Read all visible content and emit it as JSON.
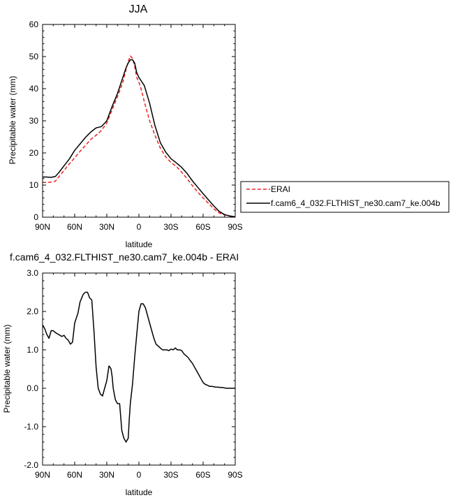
{
  "chart_data": [
    {
      "type": "line",
      "title": "JJA",
      "xlabel": "latitude",
      "ylabel": "Precipitable water (mm)",
      "xlim": [
        90,
        -90
      ],
      "ylim": [
        0,
        60
      ],
      "x_ticks": [
        90,
        60,
        30,
        0,
        -30,
        -60,
        -90
      ],
      "x_tick_labels": [
        "90N",
        "60N",
        "30N",
        "0",
        "30S",
        "60S",
        "90S"
      ],
      "y_ticks": [
        0,
        10,
        20,
        30,
        40,
        50,
        60
      ],
      "y_tick_labels": [
        "0",
        "10",
        "20",
        "30",
        "40",
        "50",
        "60"
      ],
      "grid": false,
      "legend": "right",
      "series": [
        {
          "name": "ERAI",
          "color": "#e8231c",
          "dash": "dashed",
          "x": [
            90,
            86,
            82,
            78,
            75,
            70,
            65,
            60,
            55,
            50,
            45,
            40,
            35,
            30,
            25,
            20,
            15,
            12,
            10,
            8,
            6,
            4,
            2,
            0,
            -2,
            -5,
            -10,
            -15,
            -20,
            -25,
            -30,
            -35,
            -40,
            -45,
            -50,
            -55,
            -60,
            -65,
            -70,
            -75,
            -80,
            -85,
            -90
          ],
          "y": [
            10.8,
            10.8,
            10.9,
            11.2,
            12.5,
            14.5,
            16.6,
            18.5,
            20.5,
            22.3,
            24.2,
            25.5,
            27.0,
            29.3,
            33.5,
            37.5,
            42.0,
            46.0,
            48.5,
            50.2,
            49.5,
            47.0,
            43.5,
            42.0,
            40.0,
            36.0,
            30.0,
            25.5,
            21.5,
            18.8,
            17.0,
            15.8,
            14.0,
            12.0,
            9.8,
            7.8,
            6.0,
            4.3,
            2.6,
            1.3,
            0.7,
            0.3,
            0.1
          ]
        },
        {
          "name": "f.cam6_4_032.FLTHIST_ne30.cam7_ke.004b",
          "color": "#000000",
          "dash": "solid",
          "x": [
            90,
            86,
            82,
            78,
            75,
            70,
            65,
            60,
            55,
            50,
            45,
            40,
            35,
            30,
            25,
            20,
            15,
            12,
            10,
            8,
            6,
            4,
            2,
            0,
            -2,
            -5,
            -10,
            -15,
            -20,
            -25,
            -30,
            -35,
            -40,
            -45,
            -50,
            -55,
            -60,
            -65,
            -70,
            -75,
            -80,
            -85,
            -90
          ],
          "y": [
            12.5,
            12.5,
            12.4,
            12.7,
            13.8,
            16.0,
            18.1,
            20.8,
            22.8,
            24.8,
            26.5,
            27.8,
            28.2,
            30.0,
            34.5,
            38.5,
            43.5,
            46.5,
            48.0,
            49.0,
            49.0,
            48.0,
            45.0,
            43.5,
            42.5,
            41.0,
            35.5,
            28.5,
            23.2,
            20.3,
            18.2,
            16.9,
            15.5,
            13.6,
            11.3,
            9.3,
            7.3,
            5.4,
            3.5,
            1.8,
            0.8,
            0.4,
            0.1
          ]
        }
      ]
    },
    {
      "type": "line",
      "title": "f.cam6_4_032.FLTHIST_ne30.cam7_ke.004b - ERAI",
      "xlabel": "latitude",
      "ylabel": "Precipitable water (mm)",
      "xlim": [
        90,
        -90
      ],
      "ylim": [
        -2,
        3
      ],
      "x_ticks": [
        90,
        60,
        30,
        0,
        -30,
        -60,
        -90
      ],
      "x_tick_labels": [
        "90N",
        "60N",
        "30N",
        "0",
        "30S",
        "60S",
        "90S"
      ],
      "y_ticks": [
        -2,
        -1,
        0,
        1,
        2,
        3
      ],
      "y_tick_labels": [
        "-2.0",
        "-1.0",
        "0.0",
        "1.0",
        "2.0",
        "3.0"
      ],
      "grid": false,
      "series": [
        {
          "color": "#000000",
          "dash": "solid",
          "x": [
            90,
            88,
            86,
            84,
            82,
            80,
            78,
            75,
            72,
            70,
            68,
            66,
            64,
            62,
            60,
            57,
            55,
            52,
            50,
            48,
            46,
            44,
            42,
            40,
            38,
            36,
            34,
            32,
            30,
            28,
            27,
            26,
            25,
            24,
            22,
            20,
            18,
            16,
            14,
            12,
            10,
            9,
            8,
            6,
            4,
            2,
            0,
            -2,
            -4,
            -6,
            -8,
            -10,
            -12,
            -14,
            -16,
            -18,
            -20,
            -22,
            -24,
            -26,
            -28,
            -30,
            -32,
            -34,
            -36,
            -38,
            -40,
            -42,
            -44,
            -46,
            -48,
            -50,
            -52,
            -54,
            -56,
            -58,
            -60,
            -62,
            -64,
            -66,
            -68,
            -70,
            -72,
            -74,
            -76,
            -78,
            -80,
            -82,
            -84,
            -86,
            -88,
            -90
          ],
          "y": [
            1.65,
            1.55,
            1.4,
            1.3,
            1.5,
            1.5,
            1.45,
            1.4,
            1.35,
            1.38,
            1.3,
            1.25,
            1.15,
            1.2,
            1.7,
            1.95,
            2.25,
            2.45,
            2.5,
            2.5,
            2.35,
            2.3,
            1.5,
            0.55,
            0.0,
            -0.15,
            -0.2,
            0.0,
            0.2,
            0.58,
            0.55,
            0.5,
            0.3,
            0.0,
            -0.3,
            -0.4,
            -0.4,
            -1.1,
            -1.3,
            -1.4,
            -1.3,
            -0.8,
            -0.4,
            0.1,
            0.8,
            1.4,
            2.0,
            2.2,
            2.2,
            2.1,
            1.9,
            1.7,
            1.5,
            1.3,
            1.15,
            1.1,
            1.05,
            1.0,
            1.0,
            1.0,
            0.98,
            1.02,
            1.0,
            1.05,
            1.0,
            1.0,
            0.98,
            0.9,
            0.85,
            0.8,
            0.72,
            0.65,
            0.55,
            0.45,
            0.35,
            0.25,
            0.15,
            0.1,
            0.08,
            0.05,
            0.05,
            0.04,
            0.03,
            0.03,
            0.02,
            0.02,
            0.01,
            0.0,
            0.0,
            0.0,
            0.0,
            0.0
          ]
        }
      ]
    }
  ]
}
